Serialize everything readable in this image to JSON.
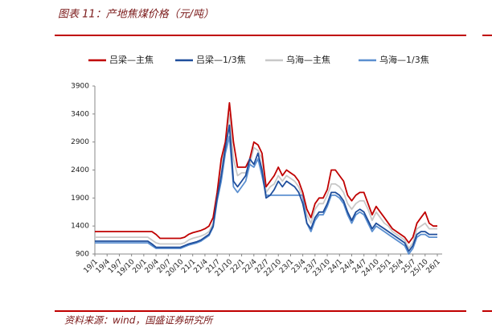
{
  "chart_data": {
    "type": "line",
    "title": "图表 11：产地焦煤价格（元/吨）",
    "source": "资料来源：wind，国盛证券研究所",
    "categories": [
      "19/1",
      null,
      null,
      "19/4",
      null,
      null,
      "19/7",
      null,
      null,
      "19/10",
      null,
      null,
      "20/1",
      null,
      null,
      "20/4",
      null,
      null,
      "20/7",
      null,
      null,
      "20/10",
      null,
      null,
      "21/1",
      null,
      null,
      "21/4",
      null,
      null,
      "21/7",
      null,
      null,
      "21/10",
      null,
      null,
      "22/1",
      null,
      null,
      "22/4",
      null,
      null,
      "22/7",
      null,
      null,
      "22/10",
      null,
      null,
      "23/1",
      null,
      null,
      "23/4",
      null,
      null,
      "23/7",
      null,
      null,
      "23/10",
      null,
      null,
      "24/1",
      null,
      null,
      "24/4",
      null,
      null,
      "24/7",
      null,
      null,
      "24/10",
      null,
      null,
      "25/1",
      null,
      null,
      "25/4",
      null,
      null,
      "25/7",
      null,
      null,
      "25/10",
      null,
      null,
      "26/1"
    ],
    "series": [
      {
        "name": "吕梁—主焦",
        "color": "#c00000",
        "values": [
          1300,
          1300,
          1300,
          1300,
          1300,
          1300,
          1300,
          1300,
          1300,
          1300,
          1300,
          1300,
          1300,
          1300,
          1300,
          1250,
          1180,
          1180,
          1180,
          1180,
          1180,
          1180,
          1200,
          1250,
          1280,
          1300,
          1320,
          1350,
          1400,
          1550,
          2000,
          2600,
          2900,
          3600,
          2900,
          2450,
          2450,
          2450,
          2600,
          2900,
          2850,
          2700,
          2100,
          2200,
          2300,
          2450,
          2300,
          2400,
          2350,
          2300,
          2200,
          2000,
          1700,
          1550,
          1800,
          1900,
          1900,
          2050,
          2400,
          2400,
          2300,
          2200,
          1950,
          1850,
          1950,
          2000,
          2000,
          1800,
          1600,
          1750,
          1650,
          1550,
          1450,
          1350,
          1300,
          1250,
          1200,
          1100,
          1200,
          1450,
          1550,
          1650,
          1450,
          1400,
          1400
        ]
      },
      {
        "name": "吕梁—1/3焦",
        "color": "#1f4e9c",
        "values": [
          1130,
          1130,
          1130,
          1130,
          1130,
          1130,
          1130,
          1130,
          1130,
          1130,
          1130,
          1130,
          1130,
          1130,
          1080,
          1020,
          1020,
          1020,
          1020,
          1020,
          1020,
          1020,
          1050,
          1080,
          1100,
          1120,
          1150,
          1200,
          1250,
          1400,
          1900,
          2300,
          2800,
          3200,
          2200,
          2100,
          2200,
          2300,
          2600,
          2500,
          2700,
          2400,
          1900,
          1950,
          2050,
          2200,
          2100,
          2200,
          2150,
          2100,
          2000,
          1800,
          1450,
          1350,
          1550,
          1650,
          1650,
          1800,
          2000,
          2000,
          1950,
          1850,
          1650,
          1500,
          1650,
          1700,
          1650,
          1500,
          1350,
          1450,
          1400,
          1350,
          1300,
          1250,
          1200,
          1150,
          1100,
          950,
          1050,
          1250,
          1300,
          1300,
          1250,
          1250,
          1250
        ]
      },
      {
        "name": "乌海—主焦",
        "color": "#c8c8c8",
        "values": [
          1200,
          1200,
          1200,
          1200,
          1200,
          1200,
          1200,
          1200,
          1200,
          1200,
          1200,
          1200,
          1200,
          1200,
          1150,
          1100,
          1080,
          1080,
          1080,
          1080,
          1080,
          1080,
          1100,
          1150,
          1180,
          1200,
          1220,
          1250,
          1300,
          1450,
          1900,
          2500,
          2800,
          3400,
          2600,
          2300,
          2350,
          2350,
          2500,
          2800,
          2750,
          2600,
          2000,
          2100,
          2150,
          2300,
          2200,
          2300,
          2250,
          2200,
          2100,
          1900,
          1600,
          1450,
          1700,
          1800,
          1800,
          1950,
          2150,
          2150,
          2100,
          2000,
          1800,
          1700,
          1800,
          1850,
          1850,
          1700,
          1500,
          1650,
          1550,
          1450,
          1400,
          1300,
          1250,
          1200,
          1150,
          1000,
          1100,
          1350,
          1400,
          1450,
          1350,
          1350,
          1350
        ]
      },
      {
        "name": "乌海—1/3焦",
        "color": "#5b8fd0",
        "values": [
          1100,
          1100,
          1100,
          1100,
          1100,
          1100,
          1100,
          1100,
          1100,
          1100,
          1100,
          1100,
          1100,
          1100,
          1050,
          1000,
          1000,
          1000,
          1000,
          1000,
          1000,
          1000,
          1030,
          1060,
          1080,
          1100,
          1130,
          1180,
          1230,
          1380,
          1850,
          2200,
          2700,
          3000,
          2100,
          2000,
          2100,
          2200,
          2500,
          2450,
          2600,
          2300,
          1950,
          1950,
          1950,
          1950,
          1950,
          1950,
          1950,
          1950,
          1950,
          1950,
          1450,
          1300,
          1500,
          1600,
          1600,
          1750,
          1950,
          1950,
          1900,
          1800,
          1600,
          1450,
          1600,
          1650,
          1600,
          1450,
          1300,
          1400,
          1350,
          1300,
          1250,
          1200,
          1150,
          1100,
          1050,
          900,
          1000,
          1200,
          1250,
          1250,
          1200,
          1200,
          1200
        ]
      }
    ],
    "ylim": [
      900,
      3900
    ],
    "yticks": [
      900,
      1400,
      1900,
      2400,
      2900,
      3400,
      3900
    ],
    "grid": false,
    "legend": "top"
  }
}
